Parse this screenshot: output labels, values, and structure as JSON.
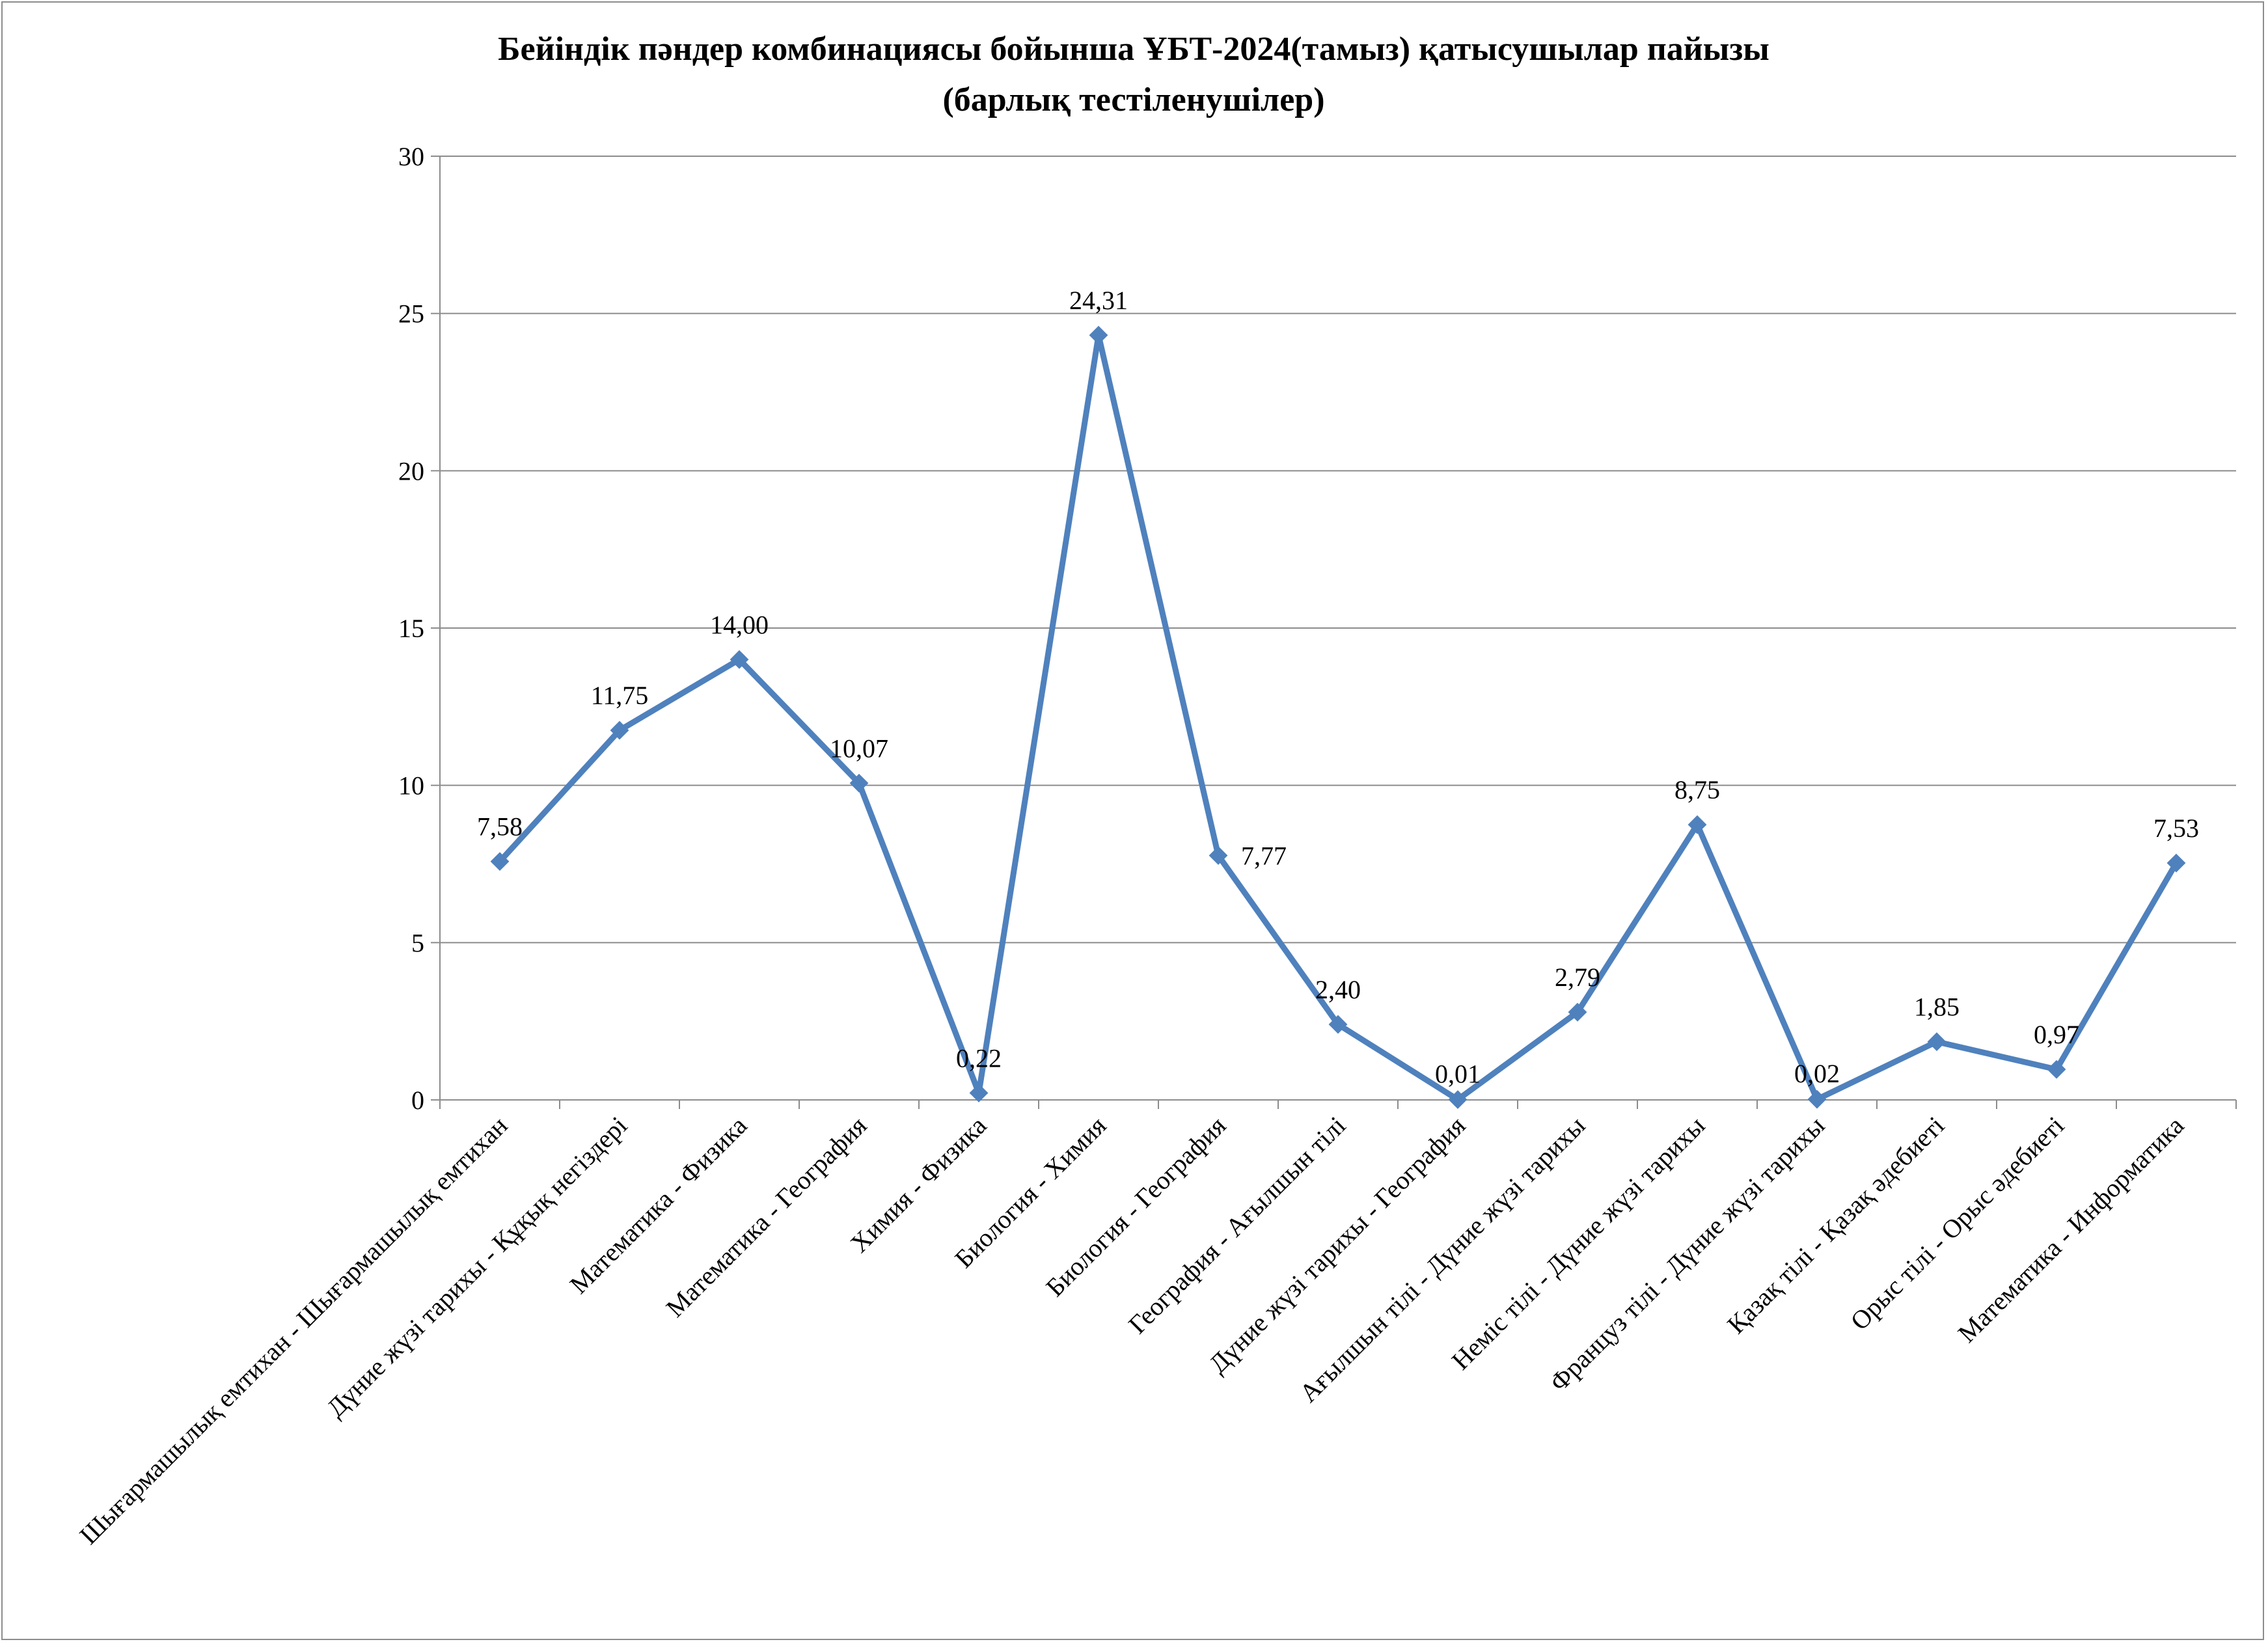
{
  "chart_data": {
    "type": "line",
    "title_line1": "Бейіндік пәндер комбинациясы бойынша ҰБТ-2024(тамыз) қатысушылар пайызы",
    "title_line2": "(барлық тестіленушілер)",
    "xlabel": "",
    "ylabel": "",
    "ylim": [
      0,
      30
    ],
    "yticks": [
      "0",
      "5",
      "10",
      "15",
      "20",
      "25",
      "30"
    ],
    "grid": true,
    "legend": "none",
    "line_color": "#4f81bd",
    "categories": [
      "Шығармашылық емтихан - Шығармашылық емтихан",
      "Дүние жүзі тарихы - Құқық негіздері",
      "Математика - Физика",
      "Математика - География",
      "Химия - Физика",
      "Биология - Химия",
      "Биология - География",
      "География - Ағылшын тілі",
      "Дүние жүзі тарихы - География",
      "Ағылшын тілі - Дүние жүзі тарихы",
      "Неміс тілі - Дүние жүзі тарихы",
      "Француз тілі - Дүние жүзі тарихы",
      "Қазақ тілі - Қазақ әдебиеті",
      "Орыс тілі - Орыс әдебиеті",
      "Математика - Информатика"
    ],
    "values": [
      7.58,
      11.75,
      14.0,
      10.07,
      0.22,
      24.31,
      7.77,
      2.4,
      0.01,
      2.79,
      8.75,
      0.02,
      1.85,
      0.97,
      7.53
    ],
    "data_labels": [
      "7,58",
      "11,75",
      "14,00",
      "10,07",
      "0,22",
      "24,31",
      "7,77",
      "2,40",
      "0,01",
      "2,79",
      "8,75",
      "0,02",
      "1,85",
      "0,97",
      "7,53"
    ]
  }
}
